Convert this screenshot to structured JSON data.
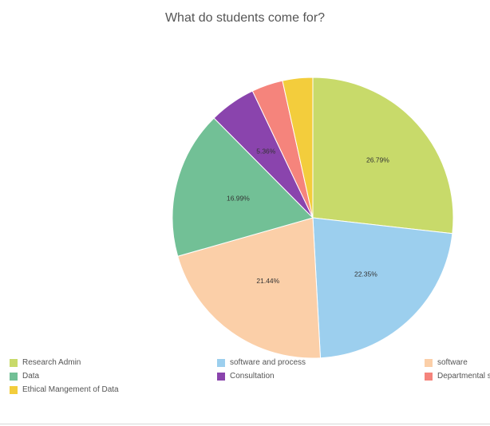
{
  "chart_data": {
    "type": "pie",
    "title": "What do students come for?",
    "slices": [
      {
        "name": "Research Admin",
        "value": 26.79,
        "label": "26.79%",
        "color": "#c8da6a"
      },
      {
        "name": "software and process",
        "value": 22.35,
        "label": "22.35%",
        "color": "#9ccfee"
      },
      {
        "name": "software",
        "value": 21.44,
        "label": "21.44%",
        "color": "#fbcfa8"
      },
      {
        "name": "Data",
        "value": 16.99,
        "label": "16.99%",
        "color": "#72c096"
      },
      {
        "name": "Consultation",
        "value": 5.36,
        "label": "5.36%",
        "color": "#8a44ad"
      },
      {
        "name": "Departmental sta",
        "value": 3.6,
        "label": "",
        "color": "#f5847c"
      },
      {
        "name": "Ethical Mangement of Data",
        "value": 3.47,
        "label": "",
        "color": "#f3cd3c"
      }
    ],
    "legend_placement": "bottom"
  }
}
